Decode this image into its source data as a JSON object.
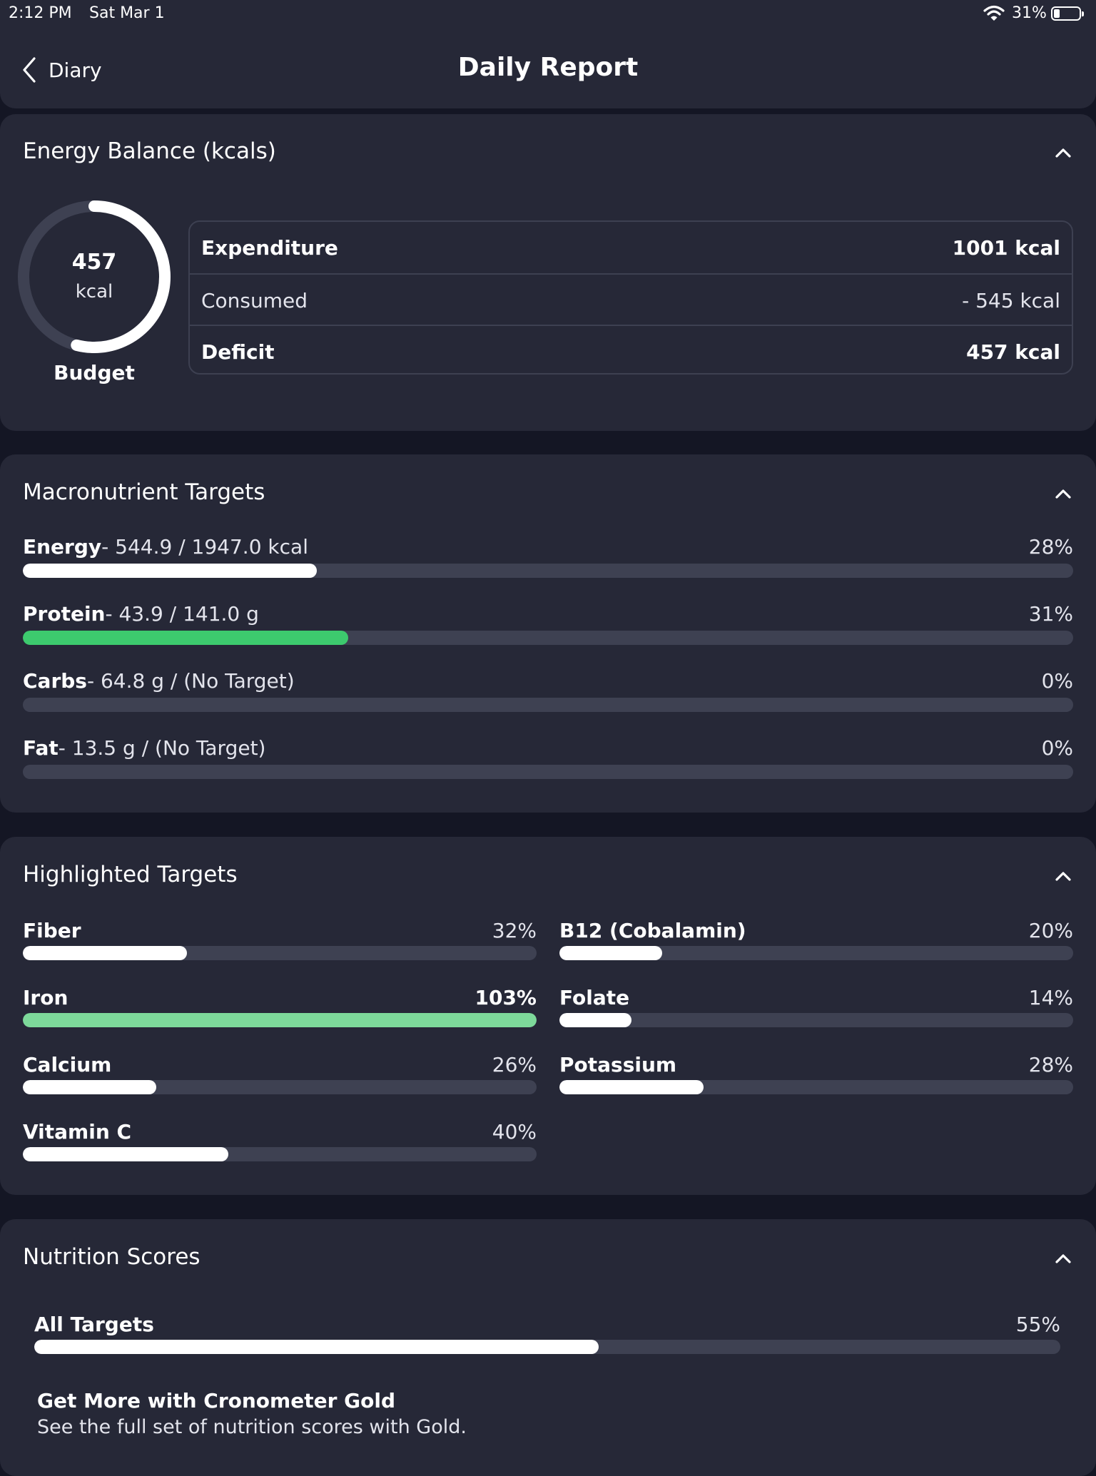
{
  "status_bar": {
    "time": "2:12 PM",
    "date": "Sat Mar 1",
    "battery": "31%",
    "battery_level": 0.31
  },
  "nav": {
    "back_label": "Diary",
    "title": "Daily Report"
  },
  "energy_balance": {
    "title": "Energy Balance (kcals)",
    "ring_value": "457",
    "ring_unit": "kcal",
    "ring_label": "Budget",
    "ring_fraction": 0.54,
    "rows": [
      {
        "label": "Expenditure",
        "value": "1001 kcal"
      },
      {
        "label": "Consumed",
        "value": "- 545 kcal"
      },
      {
        "label": "Deficit",
        "value": "457 kcal"
      }
    ]
  },
  "macros": {
    "title": "Macronutrient Targets",
    "items": [
      {
        "name": "Energy",
        "detail": "- 544.9 / 1947.0 kcal",
        "percent": "28%",
        "fill": 0.28,
        "color": "#ffffff"
      },
      {
        "name": "Protein",
        "detail": "- 43.9 / 141.0 g",
        "percent": "31%",
        "fill": 0.31,
        "color": "#3dca6e"
      },
      {
        "name": "Carbs",
        "detail": "- 64.8 g / (No Target)",
        "percent": "0%",
        "fill": 0,
        "color": "#ffffff"
      },
      {
        "name": "Fat",
        "detail": "- 13.5 g / (No Target)",
        "percent": "0%",
        "fill": 0,
        "color": "#ffffff"
      }
    ]
  },
  "highlighted": {
    "title": "Highlighted Targets",
    "left": [
      {
        "name": "Fiber",
        "percent": "32%",
        "fill": 0.32,
        "color": "#ffffff"
      },
      {
        "name": "Iron",
        "percent": "103%",
        "fill": 1.0,
        "color": "#7dd99a"
      },
      {
        "name": "Calcium",
        "percent": "26%",
        "fill": 0.26,
        "color": "#ffffff"
      },
      {
        "name": "Vitamin C",
        "percent": "40%",
        "fill": 0.4,
        "color": "#ffffff"
      }
    ],
    "right": [
      {
        "name": "B12 (Cobalamin)",
        "percent": "20%",
        "fill": 0.2,
        "color": "#ffffff"
      },
      {
        "name": "Folate",
        "percent": "14%",
        "fill": 0.14,
        "color": "#ffffff"
      },
      {
        "name": "Potassium",
        "percent": "28%",
        "fill": 0.28,
        "color": "#ffffff"
      }
    ]
  },
  "scores": {
    "title": "Nutrition Scores",
    "all_targets": {
      "name": "All Targets",
      "percent": "55%",
      "fill": 0.55,
      "color": "#ffffff"
    },
    "gold_title": "Get More with Cronometer Gold",
    "gold_sub": "See the full set of nutrition scores with Gold."
  }
}
